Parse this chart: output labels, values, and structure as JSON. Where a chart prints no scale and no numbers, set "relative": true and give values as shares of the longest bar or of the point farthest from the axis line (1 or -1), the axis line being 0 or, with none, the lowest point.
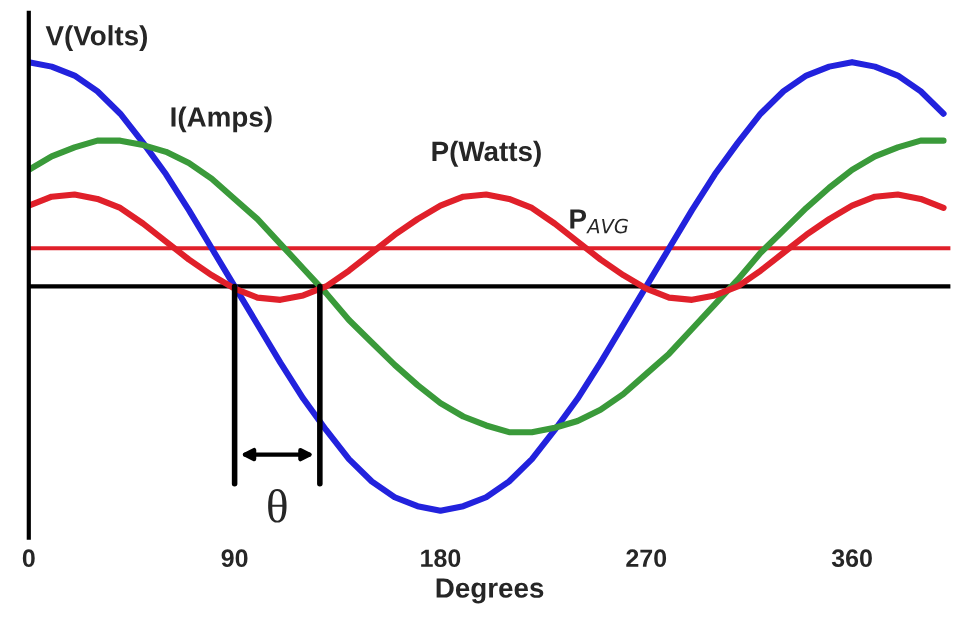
{
  "chart_data": {
    "type": "line",
    "relative": true,
    "xlabel": "Degrees",
    "x": [
      0,
      10,
      20,
      30,
      40,
      50,
      60,
      70,
      80,
      90,
      100,
      110,
      120,
      130,
      140,
      150,
      160,
      170,
      180,
      190,
      200,
      210,
      220,
      230,
      240,
      250,
      260,
      270,
      280,
      290,
      300,
      310,
      320,
      330,
      340,
      350,
      360,
      370,
      380,
      390,
      400
    ],
    "xlim": [
      0,
      403
    ],
    "xticks": [
      0,
      90,
      180,
      270,
      360
    ],
    "series": [
      {
        "name": "V(Volts)",
        "color": "#2222dd",
        "values": [
          1,
          0.98,
          0.94,
          0.87,
          0.77,
          0.64,
          0.5,
          0.34,
          0.17,
          0,
          -0.17,
          -0.34,
          -0.5,
          -0.64,
          -0.77,
          -0.87,
          -0.94,
          -0.98,
          -1,
          -0.98,
          -0.94,
          -0.87,
          -0.77,
          -0.64,
          -0.5,
          -0.34,
          -0.17,
          0,
          0.17,
          0.34,
          0.5,
          0.64,
          0.77,
          0.87,
          0.94,
          0.98,
          1,
          0.98,
          0.94,
          0.87,
          0.77
        ]
      },
      {
        "name": "I(Amps)",
        "color": "#3a9a3a",
        "values": [
          0.52,
          0.58,
          0.62,
          0.65,
          0.65,
          0.63,
          0.6,
          0.55,
          0.48,
          0.39,
          0.3,
          0.19,
          0.08,
          -0.03,
          -0.15,
          -0.25,
          -0.35,
          -0.44,
          -0.52,
          -0.58,
          -0.62,
          -0.65,
          -0.65,
          -0.63,
          -0.6,
          -0.55,
          -0.48,
          -0.39,
          -0.3,
          -0.19,
          -0.08,
          0.03,
          0.15,
          0.25,
          0.35,
          0.44,
          0.52,
          0.58,
          0.62,
          0.65,
          0.65
        ]
      },
      {
        "name": "P(Watts)",
        "color": "#e0202a",
        "values": [
          0.36,
          0.4,
          0.41,
          0.39,
          0.35,
          0.28,
          0.2,
          0.12,
          0.05,
          -0.01,
          -0.05,
          -0.06,
          -0.04,
          0,
          0.07,
          0.15,
          0.23,
          0.3,
          0.36,
          0.4,
          0.41,
          0.39,
          0.35,
          0.28,
          0.2,
          0.12,
          0.05,
          -0.01,
          -0.05,
          -0.06,
          -0.04,
          0,
          0.07,
          0.15,
          0.23,
          0.3,
          0.36,
          0.4,
          0.41,
          0.39,
          0.35
        ]
      }
    ],
    "ref_lines": [
      {
        "axis": "y",
        "value": 0.17,
        "color": "#e0202a",
        "label": "P$_{AVG}$"
      }
    ],
    "annotations": [
      "θ"
    ],
    "grid": false,
    "marker": "none",
    "line_style": "solid"
  }
}
